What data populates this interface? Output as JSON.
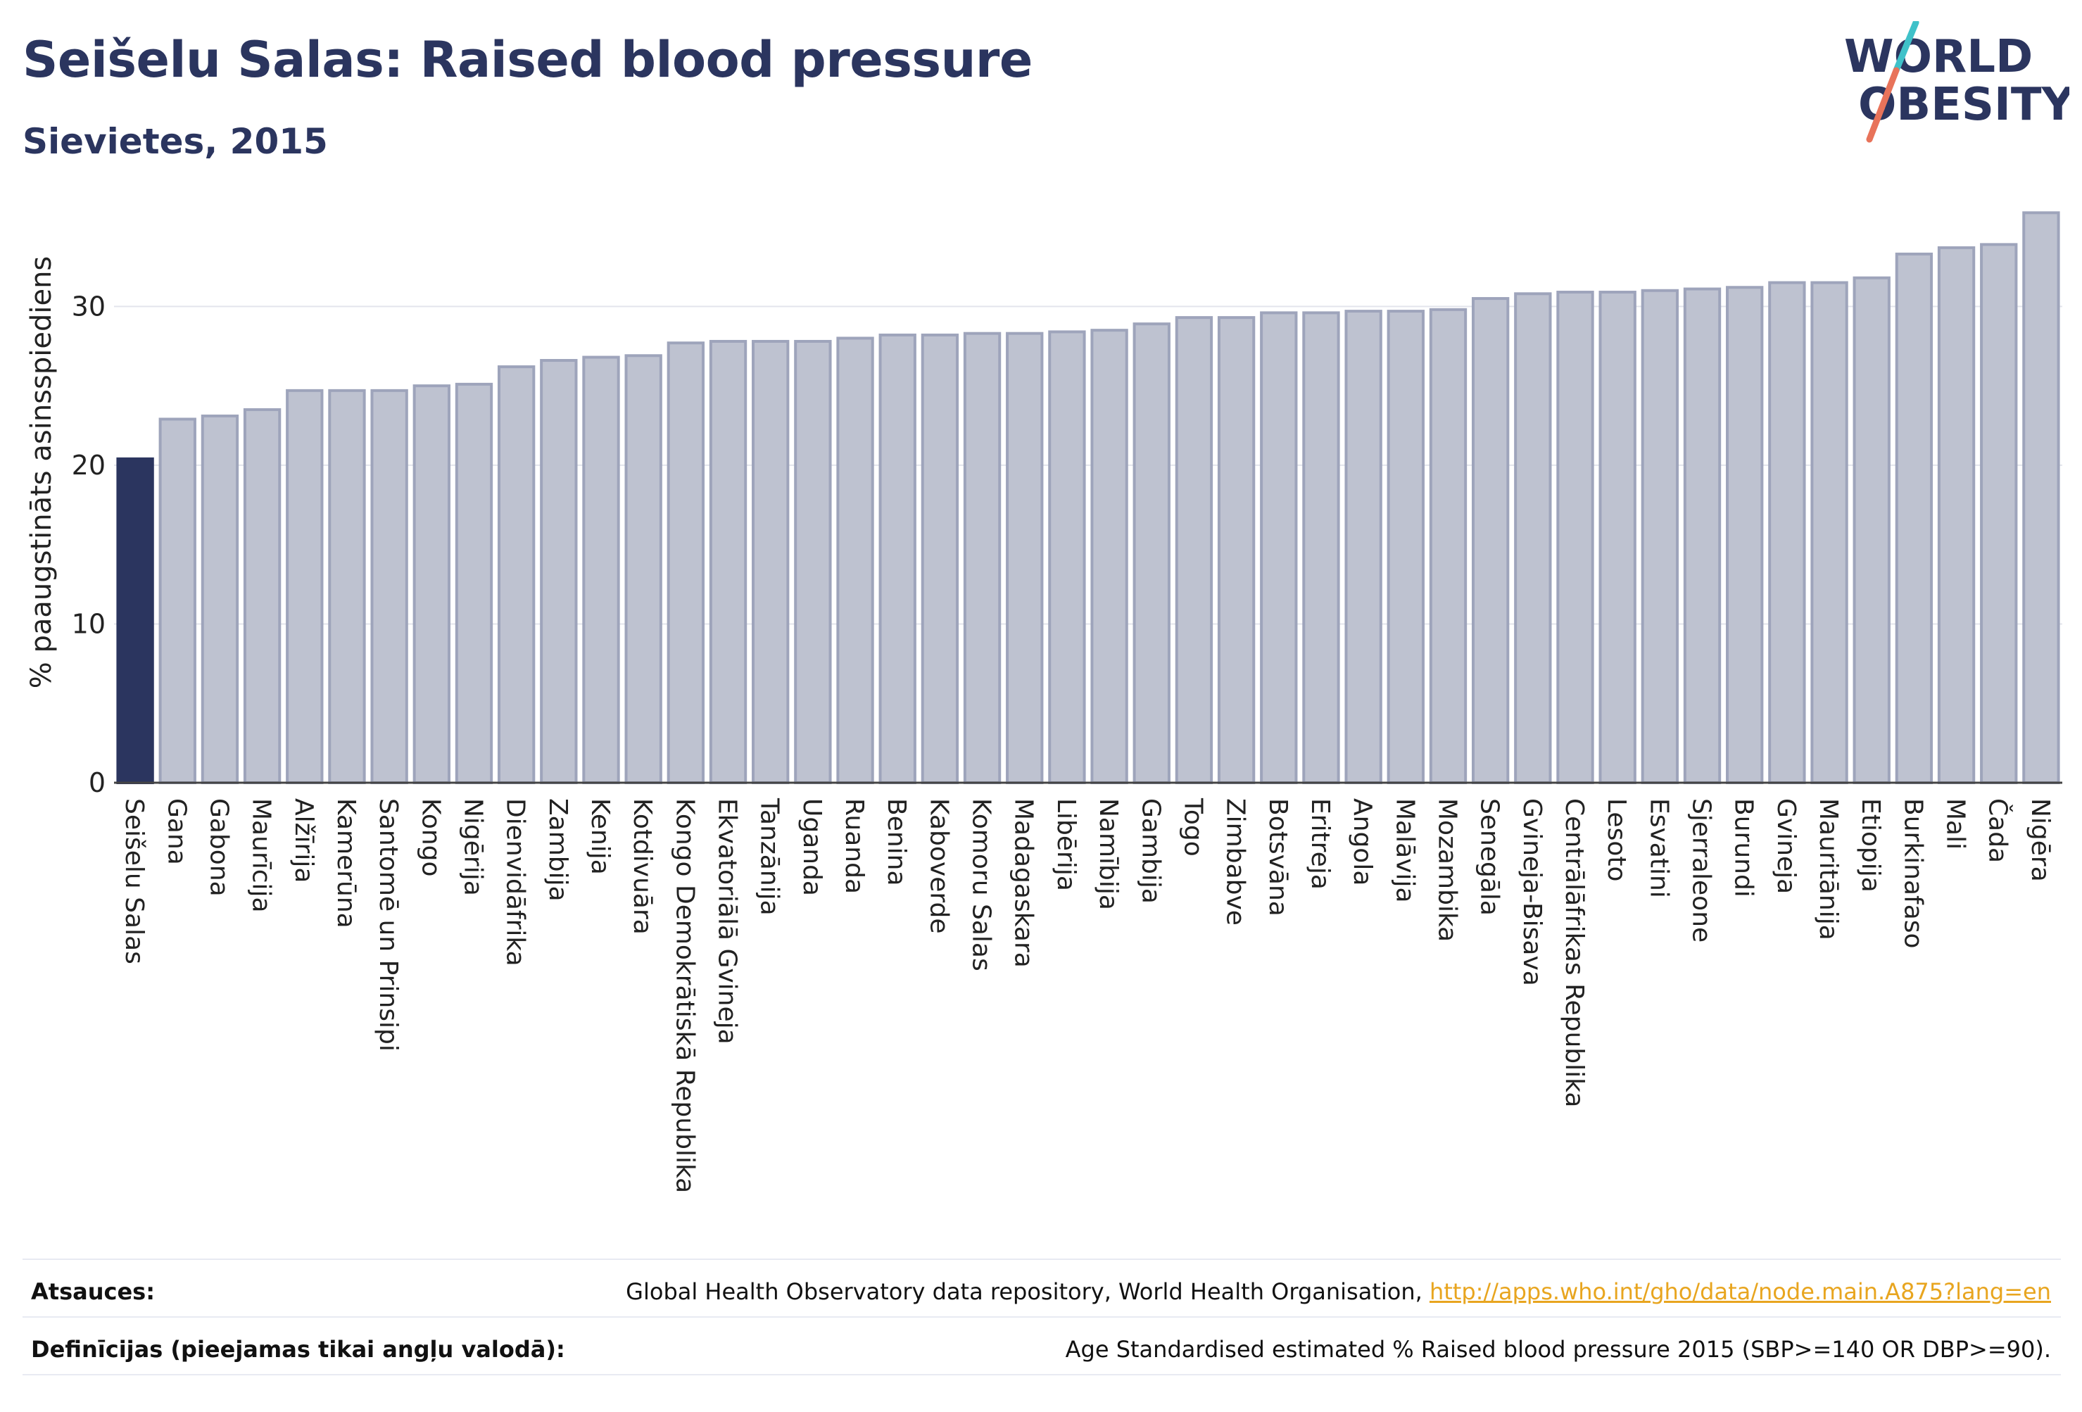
{
  "header": {
    "title": "Seišelu Salas: Raised blood pressure",
    "subtitle": "Sievietes, 2015"
  },
  "logo": {
    "line1": "WORLD",
    "line2": "OBESITY",
    "accent_colors": [
      "#3fc1c9",
      "#e8735a"
    ]
  },
  "colors": {
    "highlight": "#2b355f",
    "bar_fill": "#bec2d0",
    "bar_stroke": "#9ea4bb",
    "grid": "#e3e5ec"
  },
  "chart_data": {
    "type": "bar",
    "ylabel": "% paaugstināts asinsspiediens",
    "ylim": [
      0,
      36
    ],
    "yticks": [
      0,
      10,
      20,
      30
    ],
    "grid": true,
    "highlight_category": "Seišelu Salas",
    "categories": [
      "Seišelu Salas",
      "Gana",
      "Gabona",
      "Maurīcija",
      "Alžīrija",
      "Kamerūna",
      "Santomē un Prinsipi",
      "Kongo",
      "Nigērija",
      "Dienvidāfrika",
      "Zambija",
      "Kenija",
      "Kotdivuāra",
      "Kongo Demokrātiskā Republika",
      "Ekvatoriālā Gvineja",
      "Tanzānija",
      "Uganda",
      "Ruanda",
      "Benina",
      "Kaboverde",
      "Komoru Salas",
      "Madagaskara",
      "Libērija",
      "Namībija",
      "Gambija",
      "Togo",
      "Zimbabve",
      "Botsvāna",
      "Eritreja",
      "Angola",
      "Malāvija",
      "Mozambika",
      "Senegāla",
      "Gvineja-Bisava",
      "Centrālāfrikas Republika",
      "Lesoto",
      "Esvatini",
      "Sjerraleone",
      "Burundi",
      "Gvineja",
      "Mauritānija",
      "Etiopija",
      "Burkinafaso",
      "Mali",
      "Čada",
      "Nigēra"
    ],
    "values": [
      20.4,
      22.9,
      23.1,
      23.5,
      24.7,
      24.7,
      24.7,
      25.0,
      25.1,
      26.2,
      26.6,
      26.8,
      26.9,
      27.7,
      27.8,
      27.8,
      27.8,
      28.0,
      28.2,
      28.2,
      28.3,
      28.3,
      28.4,
      28.5,
      28.9,
      29.3,
      29.3,
      29.6,
      29.6,
      29.7,
      29.7,
      29.8,
      30.5,
      30.8,
      30.9,
      30.9,
      31.0,
      31.1,
      31.2,
      31.5,
      31.5,
      31.8,
      33.3,
      33.7,
      33.9,
      35.9
    ]
  },
  "footer": {
    "sources_label": "Atsauces:",
    "sources_text": "Global Health Observatory data repository, World Health Organisation, ",
    "sources_link": "http://apps.who.int/gho/data/node.main.A875?lang=en",
    "definitions_label": "Definīcijas (pieejamas tikai angļu valodā):",
    "definitions_text": "Age Standardised estimated % Raised blood pressure 2015 (SBP>=140 OR DBP>=90)."
  }
}
